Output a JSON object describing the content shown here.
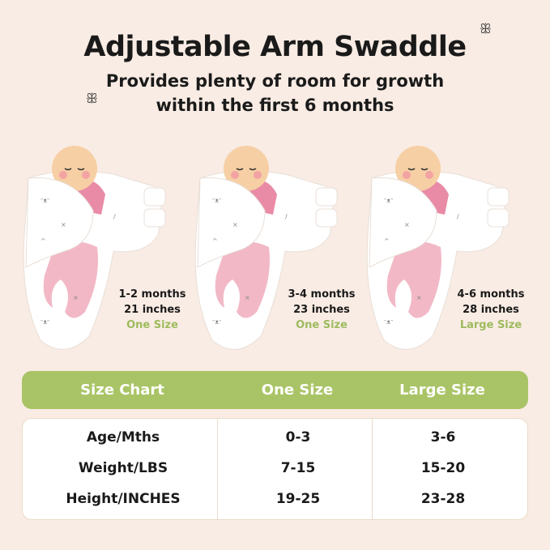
{
  "header": {
    "title": "Adjustable Arm Swaddle",
    "subtitle_line1": "Provides plenty of room for growth",
    "subtitle_line2": "within the first 6 months"
  },
  "products": [
    {
      "age": "1-2 months",
      "length": "21 inches",
      "size": "One Size"
    },
    {
      "age": "3-4 months",
      "length": "23 inches",
      "size": "One Size"
    },
    {
      "age": "4-6 months",
      "length": "28 inches",
      "size": "Large Size"
    }
  ],
  "size_chart": {
    "headers": [
      "Size Chart",
      "One Size",
      "Large Size"
    ],
    "rows": [
      [
        "Age/Mths",
        "0-3",
        "3-6"
      ],
      [
        "Weight/LBS",
        "7-15",
        "15-20"
      ],
      [
        "Height/INCHES",
        "19-25",
        "23-28"
      ]
    ]
  },
  "colors": {
    "background": "#f9ece4",
    "accent_green": "#a9c466",
    "size_label_green": "#9dbb5e",
    "pink": "#f2b8c6"
  }
}
